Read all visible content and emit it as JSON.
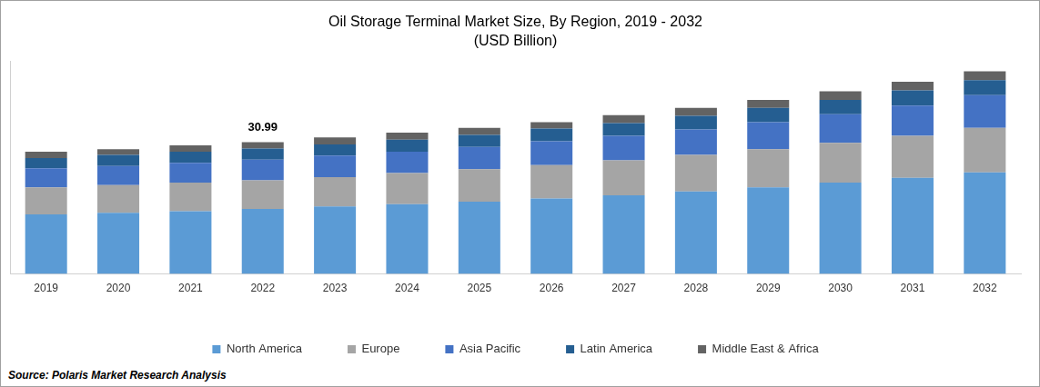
{
  "chart_data": {
    "type": "bar",
    "title": "Oil Storage Terminal Market Size, By Region, 2019 - 2032",
    "subtitle": "(USD Billion)",
    "source": "Source: Polaris Market Research Analysis",
    "categories": [
      "2019",
      "2020",
      "2021",
      "2022",
      "2023",
      "2024",
      "2025",
      "2026",
      "2027",
      "2028",
      "2029",
      "2030",
      "2031",
      "2032"
    ],
    "series": [
      {
        "name": "North America",
        "color": "#5b9bd5",
        "values": [
          14.0,
          14.38,
          14.75,
          15.31,
          15.87,
          16.43,
          16.99,
          17.74,
          18.48,
          19.42,
          20.35,
          21.47,
          22.59,
          23.9
        ]
      },
      {
        "name": "Europe",
        "color": "#a5a5a5",
        "values": [
          6.35,
          6.53,
          6.72,
          6.72,
          6.91,
          7.28,
          7.65,
          7.84,
          8.21,
          8.59,
          8.96,
          9.34,
          9.9,
          10.46
        ]
      },
      {
        "name": "Asia Pacific",
        "color": "#4472c4",
        "values": [
          4.48,
          4.48,
          4.67,
          4.85,
          5.04,
          5.04,
          5.23,
          5.6,
          5.79,
          5.97,
          6.35,
          6.72,
          7.09,
          7.65
        ]
      },
      {
        "name": "Latin America",
        "color": "#255e91",
        "values": [
          2.43,
          2.61,
          2.61,
          2.61,
          2.61,
          2.8,
          2.8,
          2.99,
          2.99,
          3.17,
          3.36,
          3.36,
          3.55,
          3.55
        ]
      },
      {
        "name": "Middle East & Africa",
        "color": "#636363",
        "values": [
          1.49,
          1.31,
          1.5,
          1.5,
          1.68,
          1.68,
          1.68,
          1.49,
          1.87,
          1.87,
          1.87,
          2.05,
          2.05,
          2.05
        ]
      }
    ],
    "ylim": [
      0,
      50
    ],
    "stacked": true,
    "grid": false,
    "legend": "bottom",
    "tick_labels": "x",
    "annotations": [
      {
        "label": "30.99",
        "x": "2022",
        "y": 30.99
      }
    ]
  }
}
